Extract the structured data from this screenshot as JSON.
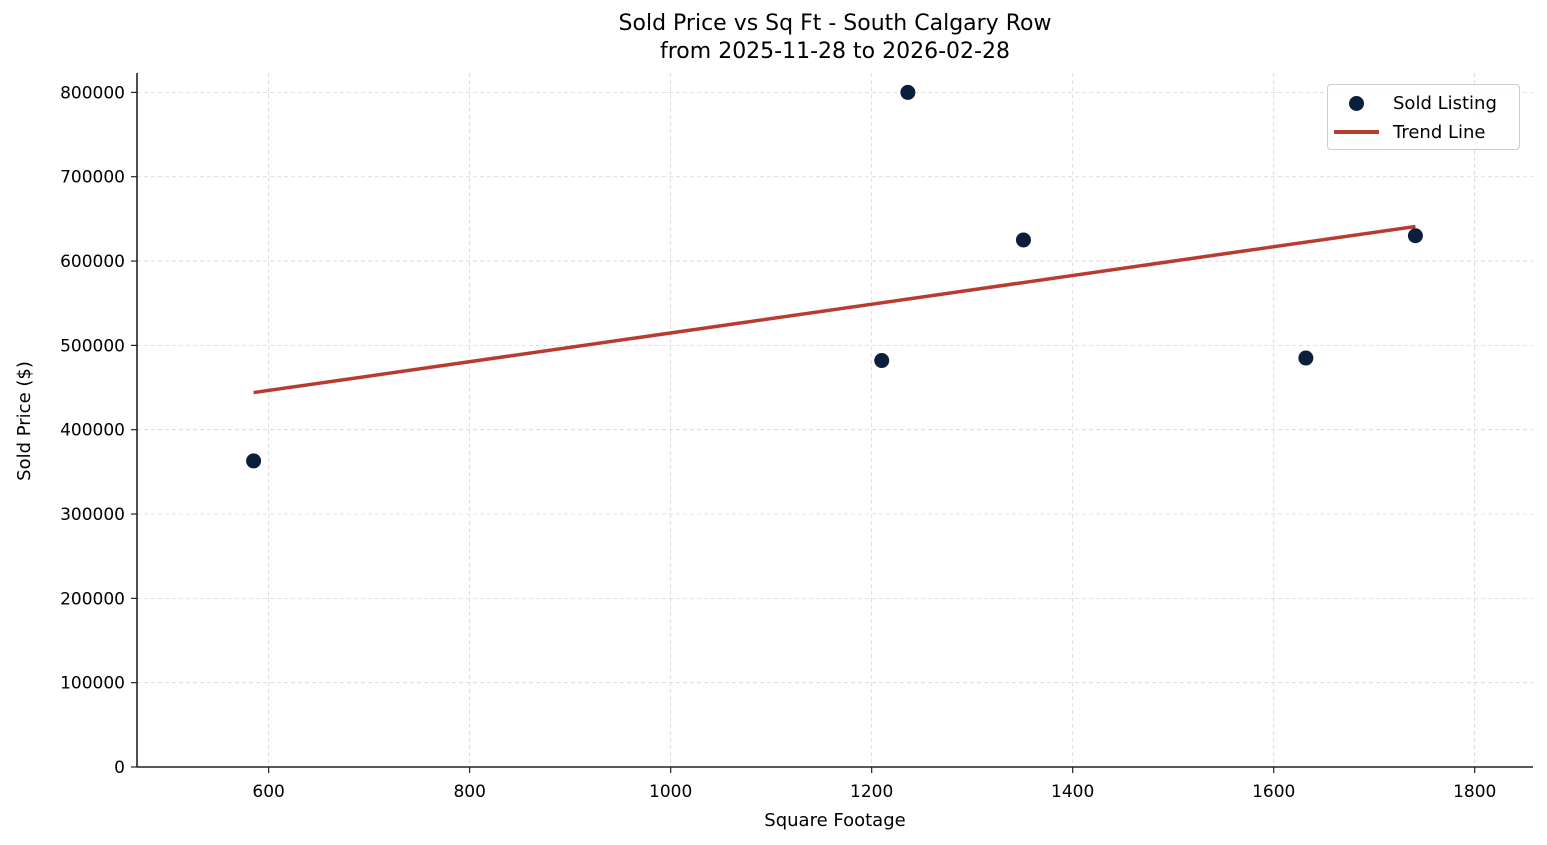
{
  "chart_data": {
    "type": "scatter",
    "title": "Sold Price vs Sq Ft - South Calgary Row",
    "subtitle": "from 2025-11-28 to 2026-02-28",
    "xlabel": "Square Footage",
    "ylabel": "Sold Price ($)",
    "xlim": [
      469,
      1858
    ],
    "ylim": [
      0,
      823000
    ],
    "x_ticks": [
      600,
      800,
      1000,
      1200,
      1400,
      1600,
      1800
    ],
    "y_ticks": [
      0,
      100000,
      200000,
      300000,
      400000,
      500000,
      600000,
      700000,
      800000
    ],
    "grid": true,
    "legend_position": "upper right",
    "series": [
      {
        "name": "Sold Listing",
        "type": "scatter",
        "color": "#0a1f3c",
        "points": [
          {
            "x": 585,
            "y": 363000
          },
          {
            "x": 1210,
            "y": 482000
          },
          {
            "x": 1236,
            "y": 800000
          },
          {
            "x": 1351,
            "y": 625000
          },
          {
            "x": 1632,
            "y": 485000
          },
          {
            "x": 1741,
            "y": 630000
          }
        ]
      },
      {
        "name": "Trend Line",
        "type": "line",
        "color": "#b83c2e",
        "points": [
          {
            "x": 585,
            "y": 444000
          },
          {
            "x": 1741,
            "y": 641000
          }
        ]
      }
    ]
  },
  "legend": {
    "items": [
      {
        "label": "Sold Listing",
        "color": "#0a1f3c",
        "marker": "dot"
      },
      {
        "label": "Trend Line",
        "color": "#b83c2e",
        "marker": "line"
      }
    ]
  }
}
